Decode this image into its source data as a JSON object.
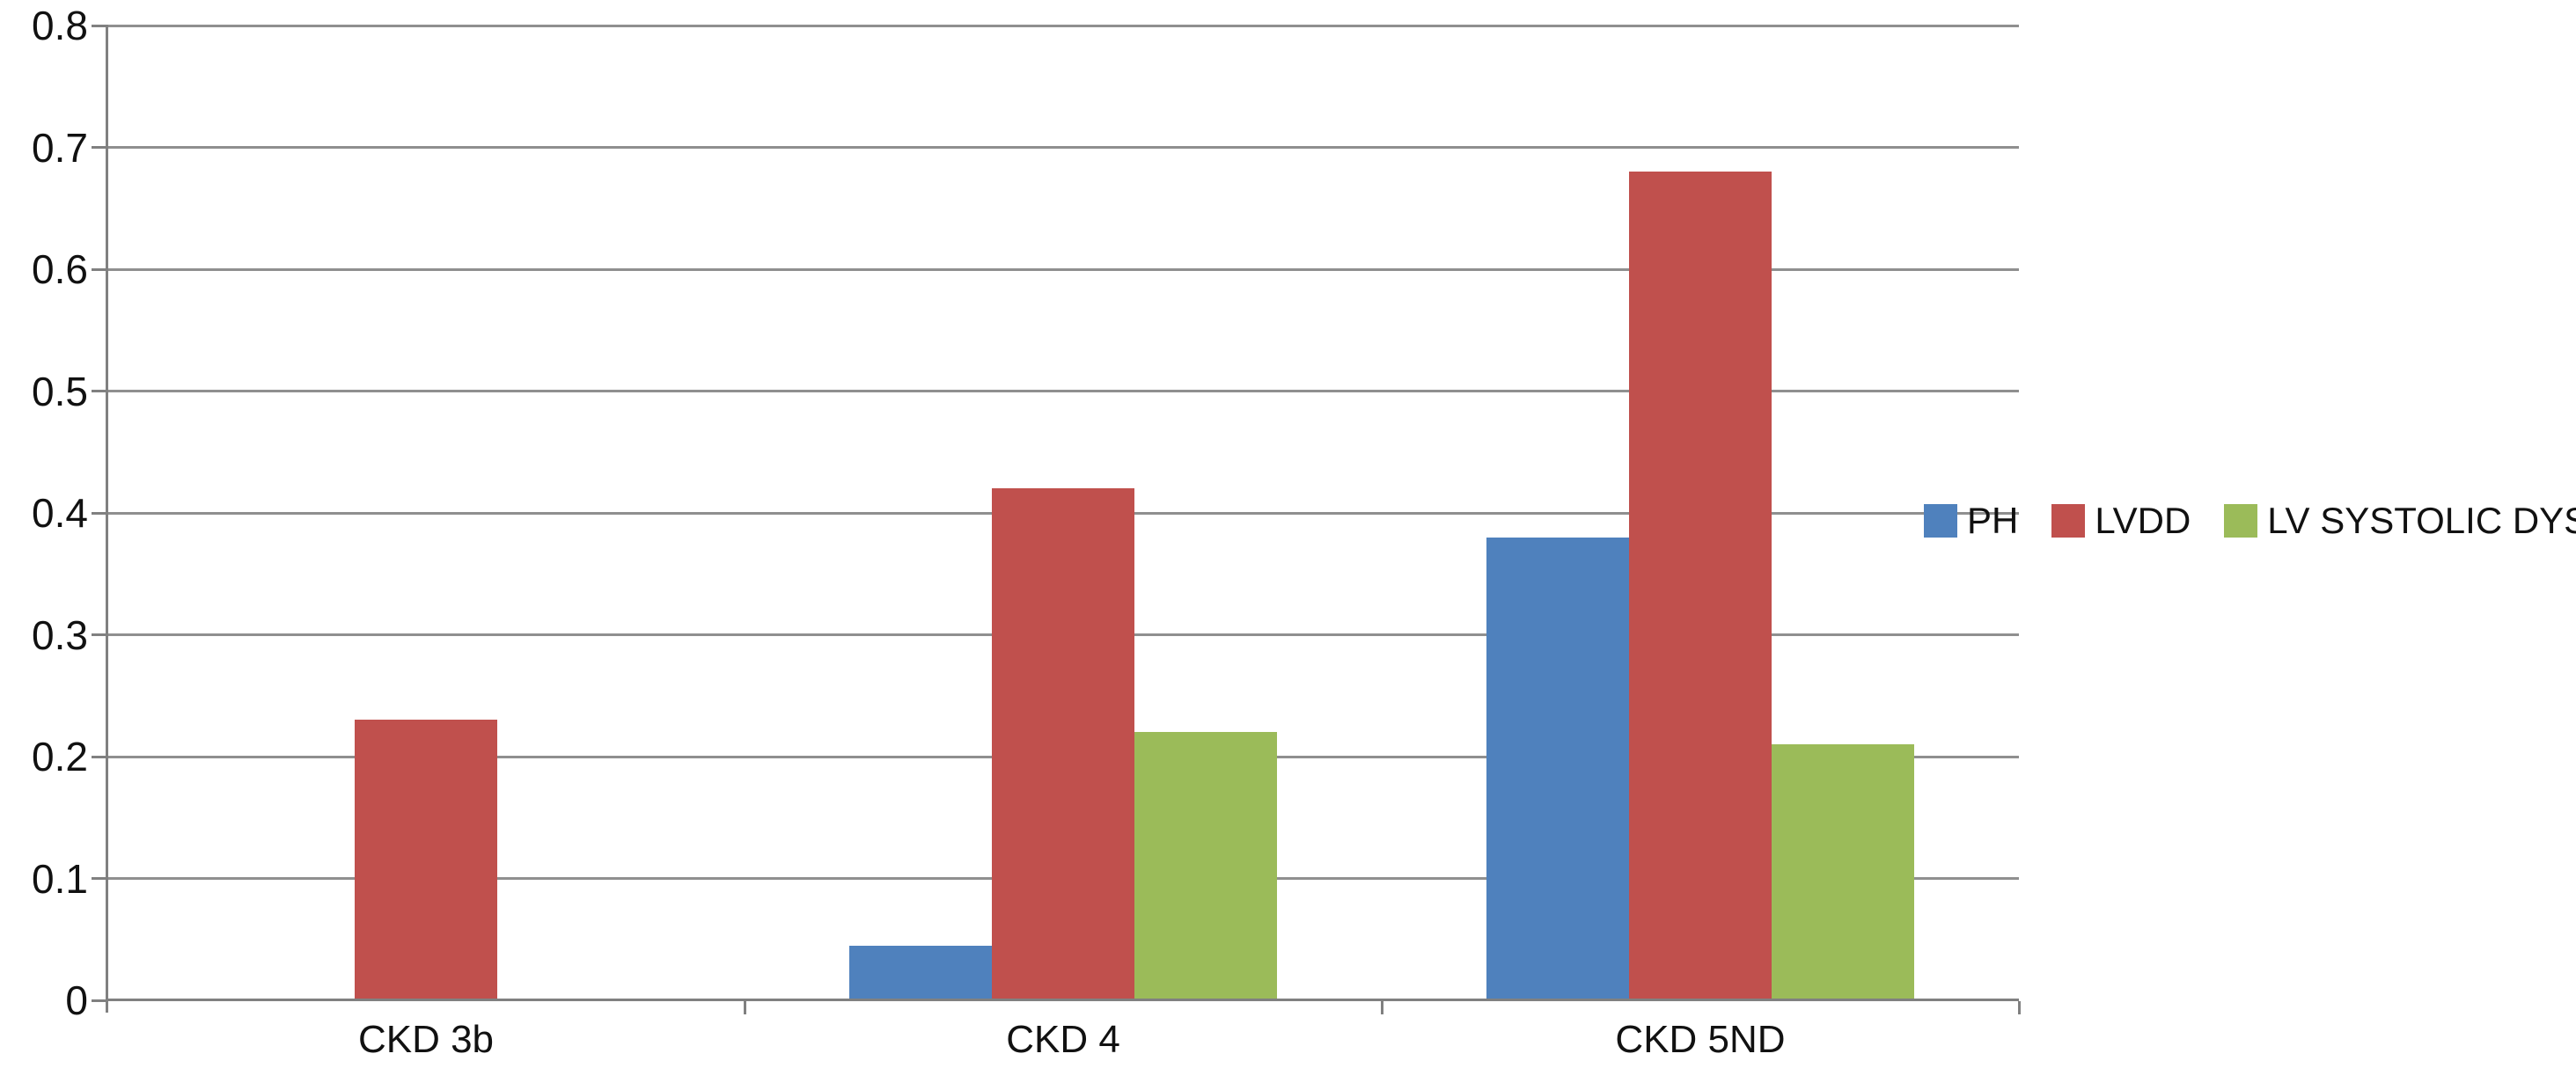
{
  "chart_data": {
    "type": "bar",
    "title": "",
    "categories": [
      "CKD 3b",
      "CKD 4",
      "CKD 5ND"
    ],
    "series": [
      {
        "name": "PH",
        "color": "#4F81BD",
        "values": [
          0,
          0.045,
          0.38
        ]
      },
      {
        "name": "LVDD",
        "color": "#C0504D",
        "values": [
          0.23,
          0.42,
          0.68
        ]
      },
      {
        "name": "LV SYSTOLIC DYS",
        "color": "#9BBB59",
        "values": [
          0,
          0.22,
          0.21
        ]
      }
    ],
    "xlabel": "",
    "ylabel": "",
    "ylim": [
      0,
      0.8
    ],
    "y_ticks": [
      {
        "label": "0.8",
        "value": 0.8
      },
      {
        "label": "0.7",
        "value": 0.7
      },
      {
        "label": "0.6",
        "value": 0.6
      },
      {
        "label": "0.5",
        "value": 0.5
      },
      {
        "label": "0.4",
        "value": 0.4
      },
      {
        "label": "0.3",
        "value": 0.3
      },
      {
        "label": "0.2",
        "value": 0.2
      },
      {
        "label": "0.1",
        "value": 0.1
      },
      {
        "label": "0",
        "value": 0
      }
    ],
    "grid": true,
    "legend_position": "right-middle",
    "colors": {
      "gridline": "#8F8F8F",
      "axis": "#808080",
      "background": "#FFFFFF",
      "text": "#111111"
    }
  }
}
